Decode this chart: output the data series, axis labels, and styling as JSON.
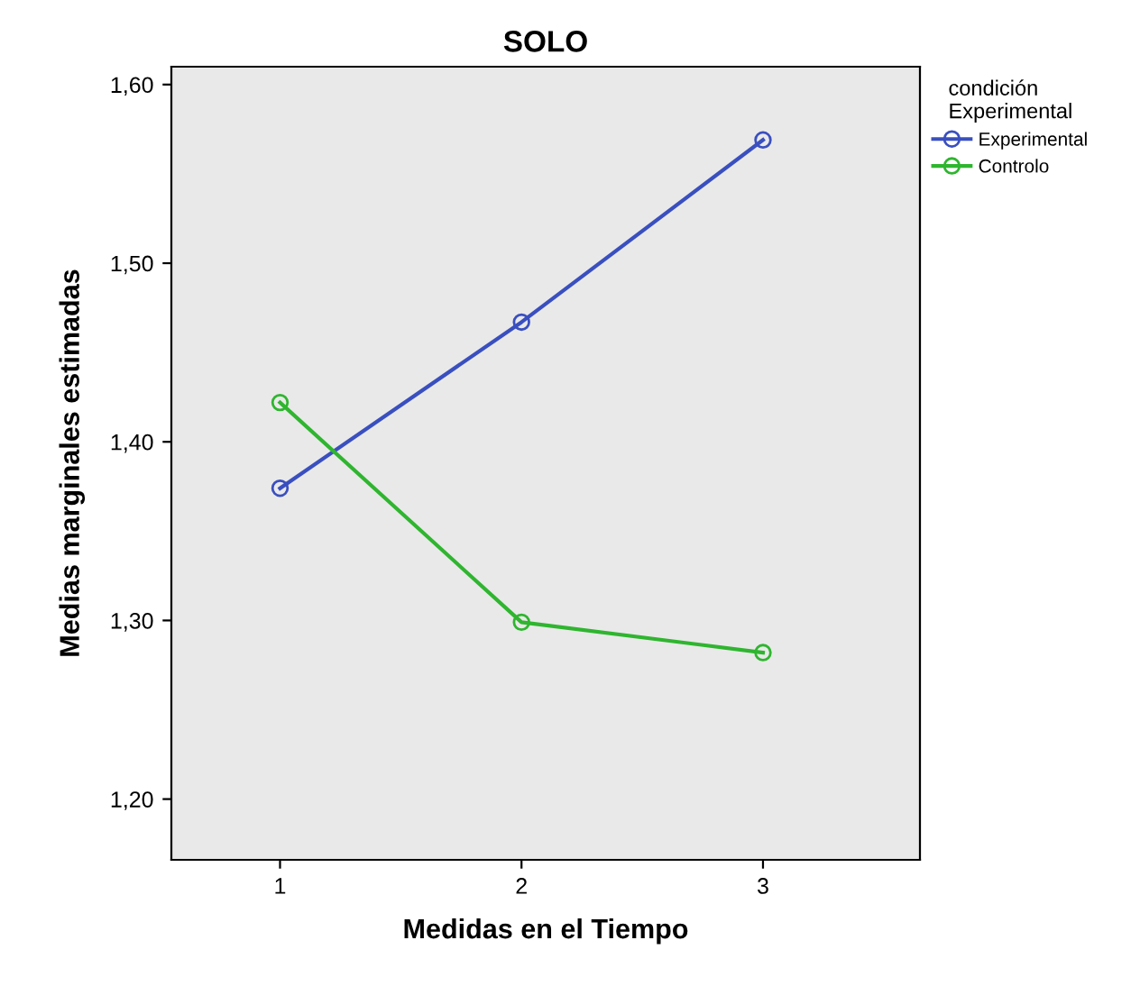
{
  "chart_data": {
    "type": "line",
    "title": "SOLO",
    "xlabel": "Medidas en el Tiempo",
    "ylabel": "Medias marginales estimadas",
    "legend_title": "condición\nExperimental",
    "x": [
      1,
      2,
      3
    ],
    "series": [
      {
        "name": "Experimental",
        "color": "#3a4fbf",
        "values": [
          1.374,
          1.467,
          1.569
        ]
      },
      {
        "name": "Controlo",
        "color": "#2fb52f",
        "values": [
          1.422,
          1.299,
          1.282
        ]
      }
    ],
    "xlim": [
      0.55,
      3.65
    ],
    "xticks": [
      1,
      2,
      3
    ],
    "ylim": [
      1.166,
      1.61
    ],
    "yticks": [
      {
        "value": 1.2,
        "label": "1,20"
      },
      {
        "value": 1.3,
        "label": "1,30"
      },
      {
        "value": 1.4,
        "label": "1,40"
      },
      {
        "value": 1.5,
        "label": "1,50"
      },
      {
        "value": 1.6,
        "label": "1,60"
      }
    ],
    "marker": "circle",
    "line_style": "solid",
    "grid": false,
    "legend": "top right"
  }
}
